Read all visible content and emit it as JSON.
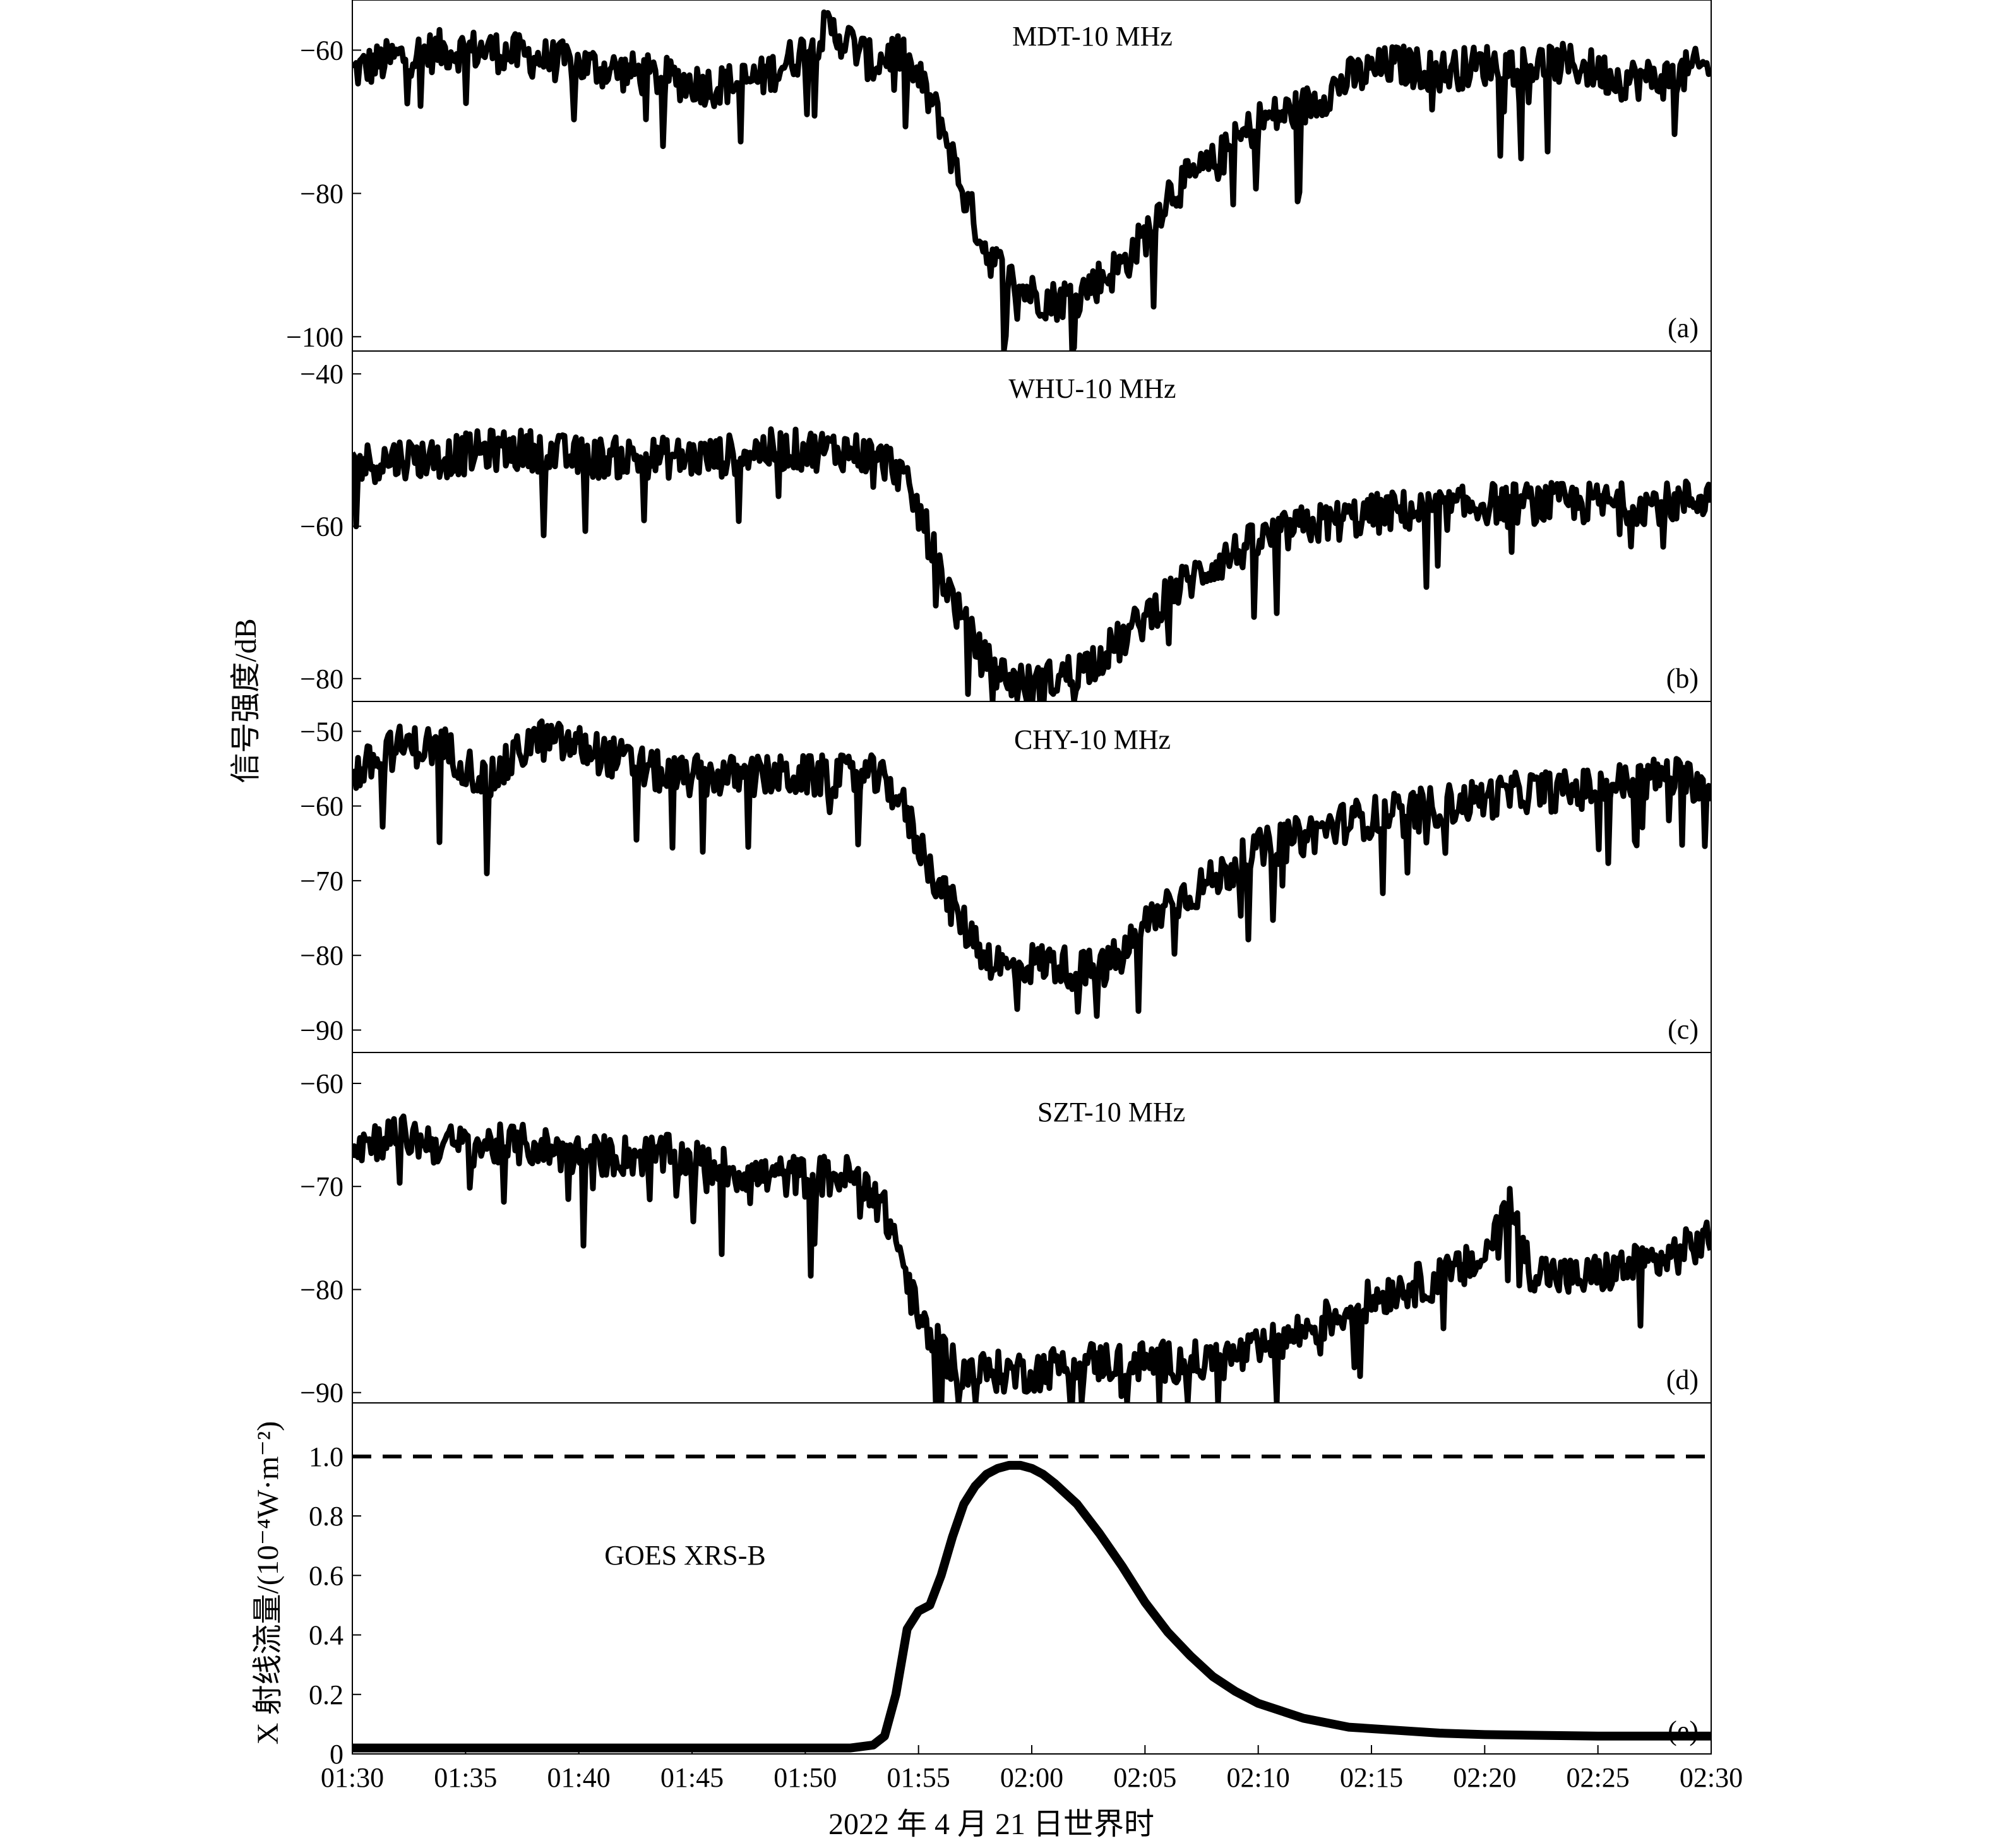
{
  "chart_data": [
    {
      "panel": "a",
      "type": "line",
      "title": "MDT-10 MHz",
      "letter": "(a)",
      "ylim": [
        -102,
        -53
      ],
      "yticks": [
        -60,
        -80,
        -100
      ],
      "ytick_labels": [
        "−60",
        "−80",
        "−100"
      ],
      "series": [
        {
          "x": [
            "01:30",
            "01:32",
            "01:34",
            "01:36",
            "01:38",
            "01:40",
            "01:42",
            "01:44",
            "01:46",
            "01:48",
            "01:50",
            "01:51",
            "01:52",
            "01:53",
            "01:54",
            "01:55",
            "01:56",
            "01:57",
            "01:58",
            "01:59",
            "02:00",
            "02:01",
            "02:02",
            "02:03",
            "02:04",
            "02:05",
            "02:06",
            "02:08",
            "02:10",
            "02:12",
            "02:14",
            "02:16",
            "02:18",
            "02:20",
            "02:22",
            "02:24",
            "02:26",
            "02:28",
            "02:30"
          ],
          "values": [
            -63,
            -61,
            -60,
            -60,
            -61,
            -62,
            -63,
            -64,
            -65,
            -64,
            -60,
            -57,
            -59,
            -62,
            -60,
            -64,
            -70,
            -80,
            -88,
            -92,
            -94,
            -95,
            -94,
            -92,
            -90,
            -86,
            -80,
            -76,
            -70,
            -68,
            -64,
            -62,
            -63,
            -62,
            -62,
            -62,
            -64,
            -64,
            -62
          ]
        }
      ]
    },
    {
      "panel": "b",
      "type": "line",
      "title": "WHU-10 MHz",
      "letter": "(b)",
      "ylim": [
        -83,
        -37
      ],
      "yticks": [
        -40,
        -60,
        -80
      ],
      "ytick_labels": [
        "−40",
        "−60",
        "−80"
      ],
      "series": [
        {
          "x": [
            "01:30",
            "01:32",
            "01:34",
            "01:36",
            "01:38",
            "01:40",
            "01:42",
            "01:44",
            "01:46",
            "01:48",
            "01:50",
            "01:52",
            "01:53",
            "01:54",
            "01:55",
            "01:56",
            "01:57",
            "01:58",
            "01:59",
            "02:00",
            "02:01",
            "02:02",
            "02:03",
            "02:04",
            "02:05",
            "02:06",
            "02:08",
            "02:10",
            "02:12",
            "02:14",
            "02:16",
            "02:18",
            "02:20",
            "02:22",
            "02:24",
            "02:26",
            "02:28",
            "02:30"
          ],
          "values": [
            -52,
            -51,
            -51,
            -50,
            -50,
            -51,
            -51,
            -51,
            -51,
            -50,
            -50,
            -50,
            -51,
            -52,
            -58,
            -66,
            -73,
            -78,
            -80,
            -81,
            -80,
            -79,
            -77,
            -75,
            -72,
            -69,
            -65,
            -62,
            -60,
            -59,
            -58,
            -58,
            -57,
            -57,
            -57,
            -57,
            -57,
            -56
          ]
        }
      ]
    },
    {
      "panel": "c",
      "type": "line",
      "title": "CHY-10 MHz",
      "letter": "(c)",
      "ylim": [
        -93,
        -46
      ],
      "yticks": [
        -50,
        -60,
        -70,
        -80,
        -90
      ],
      "ytick_labels": [
        "−50",
        "−60",
        "−70",
        "−80",
        "−90"
      ],
      "series": [
        {
          "x": [
            "01:30",
            "01:32",
            "01:34",
            "01:36",
            "01:38",
            "01:40",
            "01:42",
            "01:44",
            "01:46",
            "01:48",
            "01:50",
            "01:52",
            "01:53",
            "01:54",
            "01:55",
            "01:56",
            "01:57",
            "01:58",
            "01:59",
            "02:00",
            "02:01",
            "02:02",
            "02:03",
            "02:04",
            "02:05",
            "02:06",
            "02:08",
            "02:10",
            "02:12",
            "02:14",
            "02:16",
            "02:18",
            "02:20",
            "02:22",
            "02:24",
            "02:26",
            "02:28",
            "02:30"
          ],
          "values": [
            -56,
            -52,
            -52,
            -57,
            -51,
            -52,
            -54,
            -56,
            -56,
            -56,
            -56,
            -56,
            -56,
            -58,
            -65,
            -71,
            -76,
            -80,
            -82,
            -81,
            -81,
            -82,
            -82,
            -80,
            -76,
            -73,
            -70,
            -66,
            -64,
            -62,
            -61,
            -60,
            -59,
            -58,
            -58,
            -57,
            -56,
            -57
          ]
        }
      ]
    },
    {
      "panel": "d",
      "type": "line",
      "title": "SZT-10 MHz",
      "letter": "(d)",
      "ylim": [
        -91,
        -57
      ],
      "yticks": [
        -60,
        -70,
        -80,
        -90
      ],
      "ytick_labels": [
        "−60",
        "−70",
        "−80",
        "−90"
      ],
      "series": [
        {
          "x": [
            "01:30",
            "01:32",
            "01:34",
            "01:36",
            "01:38",
            "01:40",
            "01:42",
            "01:44",
            "01:46",
            "01:48",
            "01:50",
            "01:52",
            "01:53",
            "01:54",
            "01:55",
            "01:56",
            "01:57",
            "01:58",
            "01:59",
            "02:00",
            "02:02",
            "02:04",
            "02:06",
            "02:08",
            "02:10",
            "02:12",
            "02:14",
            "02:16",
            "02:18",
            "02:20",
            "02:21",
            "02:22",
            "02:24",
            "02:26",
            "02:28",
            "02:30"
          ],
          "values": [
            -66,
            -65,
            -66,
            -66,
            -66,
            -67,
            -67,
            -67,
            -68,
            -69,
            -69,
            -69,
            -70,
            -75,
            -83,
            -86,
            -88,
            -88,
            -88,
            -88,
            -87,
            -87,
            -87,
            -87,
            -86,
            -84,
            -82,
            -80,
            -79,
            -77,
            -71,
            -78,
            -79,
            -78,
            -77,
            -75
          ]
        }
      ]
    },
    {
      "panel": "e",
      "type": "line",
      "title": "GOES XRS-B",
      "letter": "(e)",
      "ylim": [
        0,
        1.18
      ],
      "yticks": [
        0,
        0.2,
        0.4,
        0.6,
        0.8,
        1.0
      ],
      "ytick_labels": [
        "0",
        "0.2",
        "0.4",
        "0.6",
        "0.8",
        "1.0"
      ],
      "reference_line": 1.0,
      "series": [
        {
          "x": [
            "01:30",
            "01:40",
            "01:50",
            "01:52",
            "01:53",
            "01:53:30",
            "01:54",
            "01:54:30",
            "01:55",
            "01:55:30",
            "01:56",
            "01:56:30",
            "01:57",
            "01:57:30",
            "01:58",
            "01:58:30",
            "01:59",
            "01:59:30",
            "02:00",
            "02:00:30",
            "02:01",
            "02:02",
            "02:03",
            "02:04",
            "02:05",
            "02:06",
            "02:07",
            "02:08",
            "02:09",
            "02:10",
            "02:12",
            "02:14",
            "02:16",
            "02:18",
            "02:20",
            "02:25",
            "02:30"
          ],
          "values": [
            0.02,
            0.02,
            0.02,
            0.02,
            0.03,
            0.06,
            0.2,
            0.42,
            0.48,
            0.5,
            0.6,
            0.73,
            0.84,
            0.9,
            0.94,
            0.96,
            0.97,
            0.97,
            0.96,
            0.94,
            0.91,
            0.84,
            0.74,
            0.63,
            0.51,
            0.41,
            0.33,
            0.26,
            0.21,
            0.17,
            0.12,
            0.09,
            0.08,
            0.07,
            0.065,
            0.06,
            0.06
          ]
        }
      ]
    }
  ],
  "x_axis": {
    "range": [
      "01:30",
      "02:30"
    ],
    "tick_labels": [
      "01:30",
      "01:35",
      "01:40",
      "01:45",
      "01:50",
      "01:55",
      "02:00",
      "02:05",
      "02:10",
      "02:15",
      "02:20",
      "02:25",
      "02:30"
    ],
    "label": "2022 年 4 月 21 日世界时"
  },
  "y_labels": {
    "signal": "信号强度/dB",
    "xray": "X 射线流量/(10⁻⁴W·m⁻²)"
  }
}
